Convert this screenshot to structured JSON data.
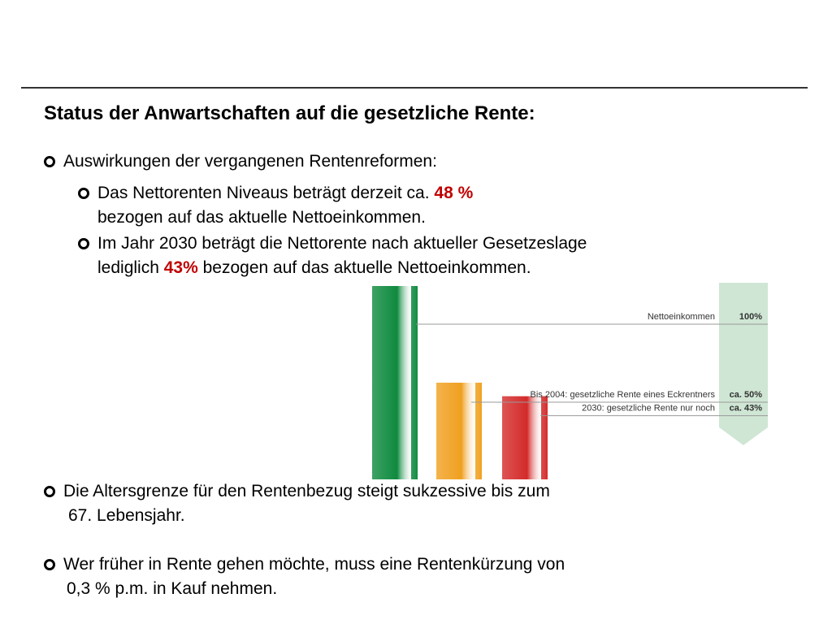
{
  "slide": {
    "title": "Status der Anwartschaften auf die gesetzliche Rente:",
    "bullet1": {
      "text": "Auswirkungen der vergangenen Rentenreformen:"
    },
    "sub1": {
      "line1_pre": "Das Nettorenten Niveaus beträgt derzeit ca.",
      "line1_value": "48 %",
      "line2": "bezogen auf das aktuelle Nettoeinkommen."
    },
    "sub2": {
      "line1": "Im Jahr 2030 beträgt die Nettorente nach aktueller Gesetzeslage",
      "line2_pre": "lediglich",
      "line2_value": "43%",
      "line2_post": "bezogen auf das aktuelle Nettoeinkommen."
    },
    "bullet2": {
      "line1": "Die Altersgrenze für den Rentenbezug steigt sukzessive bis zum",
      "line2": "67. Lebensjahr."
    },
    "bullet3": {
      "line1": "Wer früher in Rente gehen möchte, muss eine Rentenkürzung von",
      "line2": "0,3 % p.m. in Kauf nehmen."
    }
  },
  "chart_data": {
    "type": "bar",
    "categories": [
      "Nettoeinkommen",
      "Bis 2004: gesetzliche Rente eines Eckrentners",
      "2030: gesetzliche Rente nur noch"
    ],
    "values": [
      100,
      50,
      43
    ],
    "value_labels": [
      "100%",
      "ca. 50%",
      "ca. 43%"
    ],
    "colors": [
      "#0e8a3e",
      "#f0a020",
      "#d42a2a"
    ],
    "ylim": [
      0,
      100
    ]
  }
}
